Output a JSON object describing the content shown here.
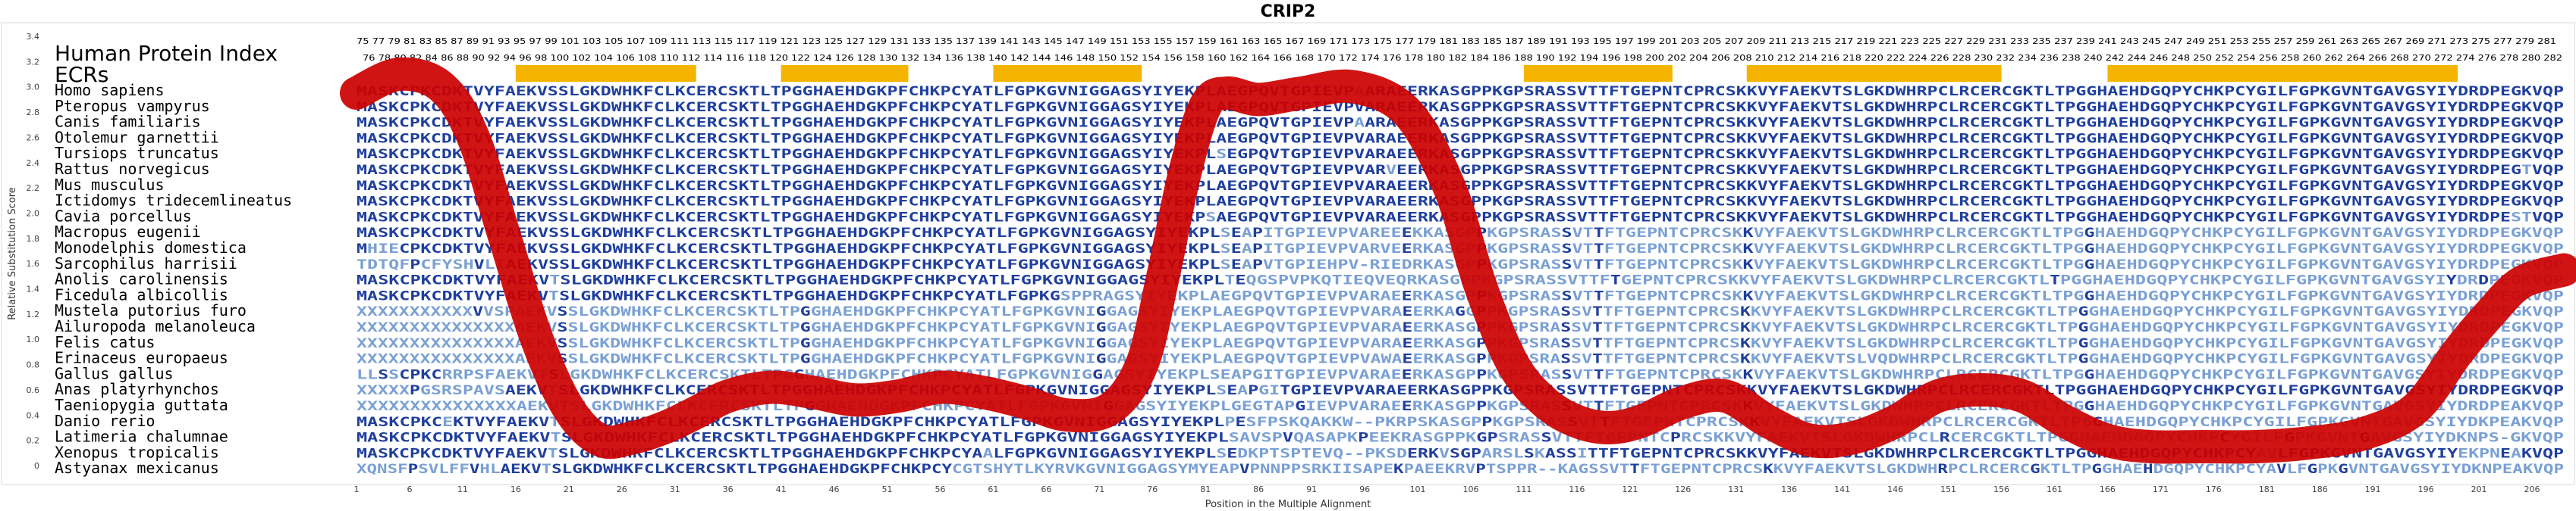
{
  "colors": {
    "ecr": "#f5b400",
    "band": "#cc0000",
    "conserved": "#1f3f9e",
    "variable": "#7aa0d4",
    "frame": "#d9d9d9"
  },
  "chart_data": {
    "type": "line",
    "title": "CRIP2",
    "xlabel": "Position in the Multiple Alignment",
    "ylabel": "Relative Substitution Score",
    "xlim": [
      1,
      209
    ],
    "ylim": [
      0,
      3.4
    ],
    "yticks": [
      "0",
      "0.2",
      "0.4",
      "0.6",
      "0.8",
      "1.0",
      "1.2",
      "1.4",
      "1.6",
      "1.8",
      "2.0",
      "2.2",
      "2.4",
      "2.6",
      "2.8",
      "3.0",
      "3.2",
      "3.4"
    ],
    "xticks": [
      "1",
      "6",
      "11",
      "16",
      "21",
      "26",
      "31",
      "36",
      "41",
      "46",
      "51",
      "56",
      "61",
      "66",
      "71",
      "76",
      "81",
      "86",
      "91",
      "96",
      "101",
      "106",
      "111",
      "116",
      "121",
      "126",
      "131",
      "136",
      "141",
      "146",
      "151",
      "156",
      "161",
      "166",
      "171",
      "176",
      "181",
      "186",
      "191",
      "196",
      "201",
      "206"
    ],
    "series": [
      {
        "x": [
          1,
          5,
          9,
          12,
          15,
          18,
          21,
          24,
          27,
          30,
          33,
          36,
          40,
          44,
          48,
          52,
          56,
          60,
          64,
          68,
          72,
          75,
          77,
          79,
          81,
          83,
          86,
          90,
          95,
          100,
          104,
          107,
          110,
          113,
          116,
          119,
          122,
          126,
          130,
          134,
          138,
          142,
          146,
          150,
          154,
          158,
          162,
          166,
          170,
          175,
          180,
          185,
          190,
          195,
          199,
          202,
          205,
          209
        ],
        "y": [
          2.95,
          3.1,
          3.0,
          2.6,
          1.8,
          1.0,
          0.45,
          0.2,
          0.22,
          0.3,
          0.42,
          0.55,
          0.62,
          0.58,
          0.52,
          0.55,
          0.62,
          0.58,
          0.5,
          0.4,
          0.45,
          0.8,
          1.5,
          2.3,
          2.85,
          2.95,
          2.9,
          2.95,
          3.0,
          2.8,
          2.2,
          1.4,
          0.8,
          0.5,
          0.35,
          0.3,
          0.35,
          0.5,
          0.55,
          0.35,
          0.2,
          0.22,
          0.35,
          0.55,
          0.6,
          0.55,
          0.35,
          0.2,
          0.15,
          0.15,
          0.15,
          0.18,
          0.25,
          0.45,
          0.9,
          1.2,
          1.45,
          1.55
        ]
      }
    ],
    "ecrs": [
      [
        16,
        33
      ],
      [
        41,
        53
      ],
      [
        61,
        75
      ],
      [
        111,
        125
      ],
      [
        132,
        156
      ],
      [
        166,
        199
      ]
    ]
  },
  "panel": {
    "hpi_label": "Human Protein Index",
    "ecr_label": "ECRs",
    "hpi_row1": "75 77 79 81 83 85 87 89 91 93 95 97 99 101 103 105 107 109 111 113 115 117 119 121 123 125 127 129 131 133 135 137 139 141 143 145 147 149 151 153 155 157 159 161 163 165 167 169 171 173 175 177 179 181 183 185 187 189 191 193 195 197 199 201 203 205 207 209 211 213 215 217 219 221 223 225 227 229 231 233 235 237 239 241 243 245 247 249 251 253 255 257 259 261 263 265 267 269 271 273 275 277 279 281",
    "hpi_row2": "76 78 80 82 84 86 88 90 92 94 96 98 100 102 104 106 108 110 112 114 116 118 120 122 124 126 128 130 132 134 136 138 140 142 144 146 148 150 152 154 156 158 160 162 164 166 168 170 172 174 176 178 180 182 184 186 188 190 192 194 196 198 200 202 204 206 208 210 212 214 216 218 220 222 224 226 228 230 232 234 236 238 240 242 244 246 248 250 252 254 256 258 260 262 264 266 268 270 272 274 276 278 280 282",
    "species": [
      {
        "name": "Homo sapiens",
        "seq": "MASKCPKCDKTVYFAEKVSSLGKDWHKFCLKCERCSKTLTPGGHAEHDGKPFCHKPCYATLFGPKGVNIGGAGSYIYEKPLAEGPQVTGPIEVPAARAEERKASGPPKGPSRASSVTTFTGEPNTCPRCSKKVYFAEKVTSLGKDWHRPCLRCERCGKTLTPGGHAEHDGQPYCHKPCYGILFGPKGVNTGAVGSYIYDRDPEGKVQP"
      },
      {
        "name": "Pteropus vampyrus",
        "seq": "MASKCPKCDKTVYFAEKVSSLGKDWHKFCLKCERCSKTLTPGGHAEHDGKPFCHKPCYATLFGPKGVNIGGAGSYIYEKPLAEGPQVTGPIEVPVARAEERKASGPPKGPSRASSVTTFTGEPNTCPRCSKKVYFAEKVTSLGKDWHRPCLRCERCGKTLTPGGHAEHDGQPYCHKPCYGILFGPKGVNTGAVGSYIYDRDPEGKVQP"
      },
      {
        "name": "Canis familiaris",
        "seq": "MASKCPKCDKTVYFAEKVSSLGKDWHKFCLKCERCSKTLTPGGHAEHDGKPFCHKPCYATLFGPKGVNIGGAGSYIYEKPLAEGPQVTGPIEVPAARAEERKASGPPKGPSRASSVTTFTGEPNTCPRCSKKVYFAEKVTSLGKDWHRPCLRCERCGKTLTPGGHAEHDGQPYCHKPCYGILFGPKGVNTGAVGSYIYDRDPEGKVQP"
      },
      {
        "name": "Otolemur garnettii",
        "seq": "MASKCPKCDKTVYFAEKVSSLGKDWHKFCLKCERCSKTLTPGGHAEHDGKPFCHKPCYATLFGPKGVNIGGAGSYIYEKPLAEGPQVTGPIEVPVARAEERKASGPPKGPSRASSVTTFTGEPNTCPRCSKKVYFAEKVTSLGKDWHRPCLRCERCGKTLTPGGHAEHDGQPYCHKPCYGILFGPKGVNTGAVGSYIYDRDPEGKVQP"
      },
      {
        "name": "Tursiops truncatus",
        "seq": "MASKCPKCDKTVYFAEKVSSLGKDWHKFCLKCERCSKTLTPGGHAEHDGKPFCHKPCYATLFGPKGVNIGGAGSYIYEKPLSEGPQVTGPIEVPVARAEERKASGPPKGPSRASSVTTFTGEPNTCPRCSKKVYFAEKVTSLGKDWHRPCLRCERCGKTLTPGGHAEHDGQPYCHKPCYGILFGPKGVNTGAVGSYIYDRDPEGKVQP"
      },
      {
        "name": "Rattus norvegicus",
        "seq": "MASKCPKCDKTVYFAEKVSSLGKDWHKFCLKCERCSKTLTPGGHAEHDGKPFCHKPCYATLFGPKGVNIGGAGSYIYEKPLAEGPQVTGPIEVPVARVEERKASGPPKGPSRASSVTTFTGEPNTCPRCSKKVYFAEKVTSLGKDWHRPCLRCERCGKTLTPGGHAEHDGQPYCHKPCYGILFGPKGVNTGAVGSYIYDRDPEGTVQP"
      },
      {
        "name": "Mus musculus",
        "seq": "MASKCPKCDKTVYFAEKVSSLGKDWHKFCLKCERCSKTLTPGGHAEHDGKPFCHKPCYATLFGPKGVNIGGAGSYIYEKPLAEGPQVTGPIEVPVARAEERKASGPPKGPSRASSVTTFTGEPNTCPRCSKKVYFAEKVTSLGKDWHRPCLRCERCGKTLTPGGHAEHDGQPYCHKPCYGILFGPKGVNTGAVGSYIYDRDPEGKVQP"
      },
      {
        "name": "Ictidomys tridecemlineatus",
        "seq": "MASKCPKCDKTVYFAEKVSSLGKDWHKFCLKCERCSKTLTPGGHAEHDGKPFCHKPCYATLFGPKGVNIGGAGSYIYEKPLAEGPQVTGPIEVPVARAEERKASGPPKGPSRASSVTTFTGEPNTCPRCSKKVYFAEKVTSLGKDWHRPCLRCERCGKTLTPGGHAEHDGQPYCHKPCYGILFGPKGVNTGAVGSYIYDRDPEGKVQP"
      },
      {
        "name": "Cavia porcellus",
        "seq": "MASKCPKCDKTVYFAEKVSSLGKDWHKFCLKCERCSKTLTPGGHAEHDGKPFCHKPCYATLFGPKGVNIGGAGSYIYEKPSAEGPQVTGPIEVPVARAEERKASGPPKGPSRASSVTTFTGEPNTCPRCSKKVYFAEKVTSLGKDWHRPCLRCERCGKTLTPGGHAEHDGQPYCHKPCYGILFGPKGVNTGAVGSYIYDRDPESTVQP"
      },
      {
        "name": "Macropus eugenii",
        "seq": "MASKCPKCDKTVYFAEKVSSLGKDWHKFCLKCERCSKTLTPGGHAEHDGKPFCHKPCYATLFGPKGVNIGGAGSYIYEKPLSEAPITGPIEVPVAREEEKKASGPPKGPSRASSVTTFTGEPNTCPRCSKKVYFAEKVTSLGKDWHRPCLRCERCGKTLTPGGHAEHDGQPYCHKPCYGILFGPKGVNTGAVGSYIYDRDPEGKVQP"
      },
      {
        "name": "Monodelphis domestica",
        "seq": "MHIECPKCDKTVYFAEKVSSLGKDWHKFCLKCERCSKTLTPGGHAEHDGKPFCHKPCYATLFGPKGVNIGGAGSYIYEKPLSEAPITGPIEVPVARVEERKASGPPKGPSRASSVTTFTGEPNTCPRCSKKVYFAEKVTSLGKDWHRPCLRCERCGKTLTPGGHAEHDGQPYCHKPCYGILFGPKGVNTGAVGSYIYDRDPEGKVQP"
      },
      {
        "name": "Sarcophilus harrisii",
        "seq": "TDTQFPCFYSHVLIAEKVSSLGKDWHKFCLKCERCSKTLTPGGHAEHDGKPFCHKPCYATLFGPKGVNIGGAGSYIYEKPLSEAPVTGPIEHPV-RIEDRKASGPPKGPSRASSVTTFTGEPNTCPRCSKKVYFAEKVTSLGKDWHRPCLRCERCGKTLTPGGHAEHDGQPYCHKPCYGILFGPKGVNTGAVGSYIYDRDPEGKVQP"
      },
      {
        "name": "Anolis carolinensis",
        "seq": "MASKCPKCDKTVYFAEKVTSLGKDWHKFCLKCERCSKTLTPGGHAEHDGKPFCHKPCYATLFGPKGVNIGGAGSYIYEKPLTEQGSPVPKQTIEQVEQRKASGPPKGPSRASSVTTFTGEPNTCPRCSKKVYFAEKVTSLGKDWHRPCLRCERCGKTLTPGGHAEHDGQPYCHKPCYGILFGPKGVNTGAVGSYIYDRDPEGKVQP"
      },
      {
        "name": "Ficedula albicollis",
        "seq": "MASKCPKCDKTVYFAEKVTSLGKDWHKFCLKCERCSKTLTPGGHAEHDGKPFCHKPCYATLFGPKGSPPRAGSYIYEKPLAEGPQVTGPIEVPVARAEERKASGPPKGPSRASSVTTFTGEPNTCPRCSKKVYFAEKVTSLGKDWHRPCLRCERCGKTLTPGGHAEHDGQPYCHKPCYGILFGPKGVNTGAVGSYIYDRDPEGKVQP"
      },
      {
        "name": "Mustela putorius furo",
        "seq": "XXXXXXXXXXXVVSPAEKVSSLGKDWHKFCLKCERCSKTLTPGGHAEHDGKPFCHKPCYATLFGPKGVNIGGAGSYIYEKPLAEGPQVTGPIEVPVARAEERKAGGPPKGPSRASSVTTFTGEPNTCPRCSKKVYFAEKVTSLGKDWHRPCLRCERCGKTLTPGGHAEHDGQPYCHKPCYGILFGPKGVNTGAVGSYIYDRDPEGKVQP"
      },
      {
        "name": "Ailuropoda melanoleuca",
        "seq": "XXXXXXXXXXXXXXXAEKVSSLGKDWHKFCLKCERCSKTLTPGGHAEHDGKPFCHKPCYATLFGPKGVNIGGAGSYIYEKPLAEGPQVTGPIEVPVARAEERKASGPPKGPSRASSVTTFTGEPNTCPRCSKKVYFAEKVTSLGKDWHRPCLRCERCGKTLTPGGHAEHDGQPYCHKPCYGILFGPKGVNTGAVGSYIYDRDPEGKVQP"
      },
      {
        "name": "Felis catus",
        "seq": "XXXXXXXXXXXXXXXAEKVSSLGKDWHKFCLKCERCSKTLTPGGHAEHDGKPFCHKPCYATLFGPKGVNIGGAGSYIYEKPLAEGPQVTGPIEVPVARAEERKASGPPKGPSRASSVTTFTGEPNTCPRCSKKVYFAEKVTSLGKDWHRPCLRCERCGKTLTPGGHAEHDGQPYCHKPCYGILFGPKGVNTGAVGSYIYDRDPEGKVQP"
      },
      {
        "name": "Erinaceus europaeus",
        "seq": "XXXXXXXXXXXXXXXAEKVSSLGKDWHKFCLKCERCSKTLTPGGHAEHDGKPFCHKPCYATLFGPKGVNIGGAGSYIYEKPLAEGPQVTGPIEVPVAWAEERKASGPPKGPSRASSVTTFTGEPNTCPRCSKKVYFAEKVTSLVQDWHRPCLRCERCGKTLTPGGHAEHDGQPYCHKPCYGILFGPKGVNTGAVGSYIYDRDPEGKVQP"
      },
      {
        "name": "Gallus gallus",
        "seq": "LLSSCPKCRRPSFAEKVTSLGKDWHKFCLKCERCSKTLTPGGHAEHDGKPFCHKPCYATLFGPKGVNIGGAGSYIYEKPLSEAPGITGPIEVPVARAEERKASGPPKGPSRASSVTTFTGEPNTCPRCSKKVYFAEKVTSLGKDWHRPCLRCERCGKTLTPGGHAEHDGQPYCHKPCYGILFGPKGVNTGAVGSYIYDRDPEGKVQP"
      },
      {
        "name": "Anas platyrhynchos",
        "seq": "XXXXXPGSRSPAVSAEKVTSLGKDWHKFCLKCERCSKTLTPGGHAEHDGKPFCHKPCYATLFGPKGVNIGGAGSYIYEKPLSEAPGITGPIEVPVARAEERKASGPPKGPSRASSVTTFTGEPNTCPRCSKKVYFAEKVTSLGKDWHRPCLRCERCGKTLTPGGHAEHDGQPYCHKPCYGILFGPKGVNTGAVGSYIYDRDPEGKVQP"
      },
      {
        "name": "Taeniopygia guttata",
        "seq": "XXXXXXXXXXXXXXXAEKVTSLGKDWHKFCLKCERCSKTLTPGGHAEHDGKPFCHKPCYATLFGPKGVNIGGAGSYIYEKPLGEGTAPGIEVPVARAEERKASGPPKGPSRASSVTTFTGEPNTCPRCSKKVYFAEKVTSLGKDWHRPCLRCERCGKTLTPGGHAEHDGQPYCHKPCYGILFGPKGVNTGAVGSYIYDRDPEAKVQP"
      },
      {
        "name": "Danio rerio",
        "seq": "MASKCPKCEKTVYFAEKVTSLGKDWHKFCLKCERCSKTLTPGGHAEHDGKPFCHKPCYATLFGPKGVNIGGAGSYIYEKPLPESFPSKQAKKW--PKRPSKASGPPKGPSRASSVTTFTGEPNTCPRCSKKVYFAEKVTSLGKDWHRPCLRCERCGKTLTPGGHAEHDGQPYCHKPCYGILFGPKGVNTGAVGSYIYDKPEAKVQP"
      },
      {
        "name": "Latimeria chalumnae",
        "seq": "MASKCPKCDKTVYFAEKVTSLGKDWHKFCLKCERCSKTLTPGGHAEHDGKPFCHKPCYATLFGPKGVNIGGAGSYIYEKPLSAVSPVQASAPKPEEKRASGPPKGPSRASSVTTFTGEPNTCPRCSKKVYFAEKVTSLGKDWHRPCLRCERCGKTLTPGGHAEHDGQPYCHKPCYGILFGPKGVNTGAVGSYIYDKNPS-GKVQP"
      },
      {
        "name": "Xenopus tropicalis",
        "seq": "MASKCPKCDKTVYFAEKVTSLGKDWHKFCLKCERCSKTLTPGGHAEHDGKPFCHKPCYAALFGPKGVNIGGAGSYIYEKPLSEDKPTSPTEVQ--PKSDERKVSGPARSLSKASSITTFTGEPNTCPRCSKKVYFAEKVTSLGKDWHRPCLRCERCGKTLTPGGHAEHDGQPYCHKPCYAVLFGPKGVNTGAVGSYIYEKPNEAKVQP"
      },
      {
        "name": "Astyanax mexicanus",
        "seq": "XQNSFPSVLFFVHLAEKVTSLGKDWHKFCLKCERCSKTLTPGGHAEHDGKPFCHKPCYCGTSHYTLKYRVKGVNIGGAGSYMYEAPVPNNPPSRKIISAPEKPAEEKRVPTSPPR--KAGSSVTTFTGEPNTCPRCSKKVYFAEKVTSLGKDWHRPCLRCERCGKTLTPGGHAEHDGQPYCHKPCYAVLFGPKGVNTGAVGSYIYDKNPEAKVQP"
      }
    ]
  }
}
